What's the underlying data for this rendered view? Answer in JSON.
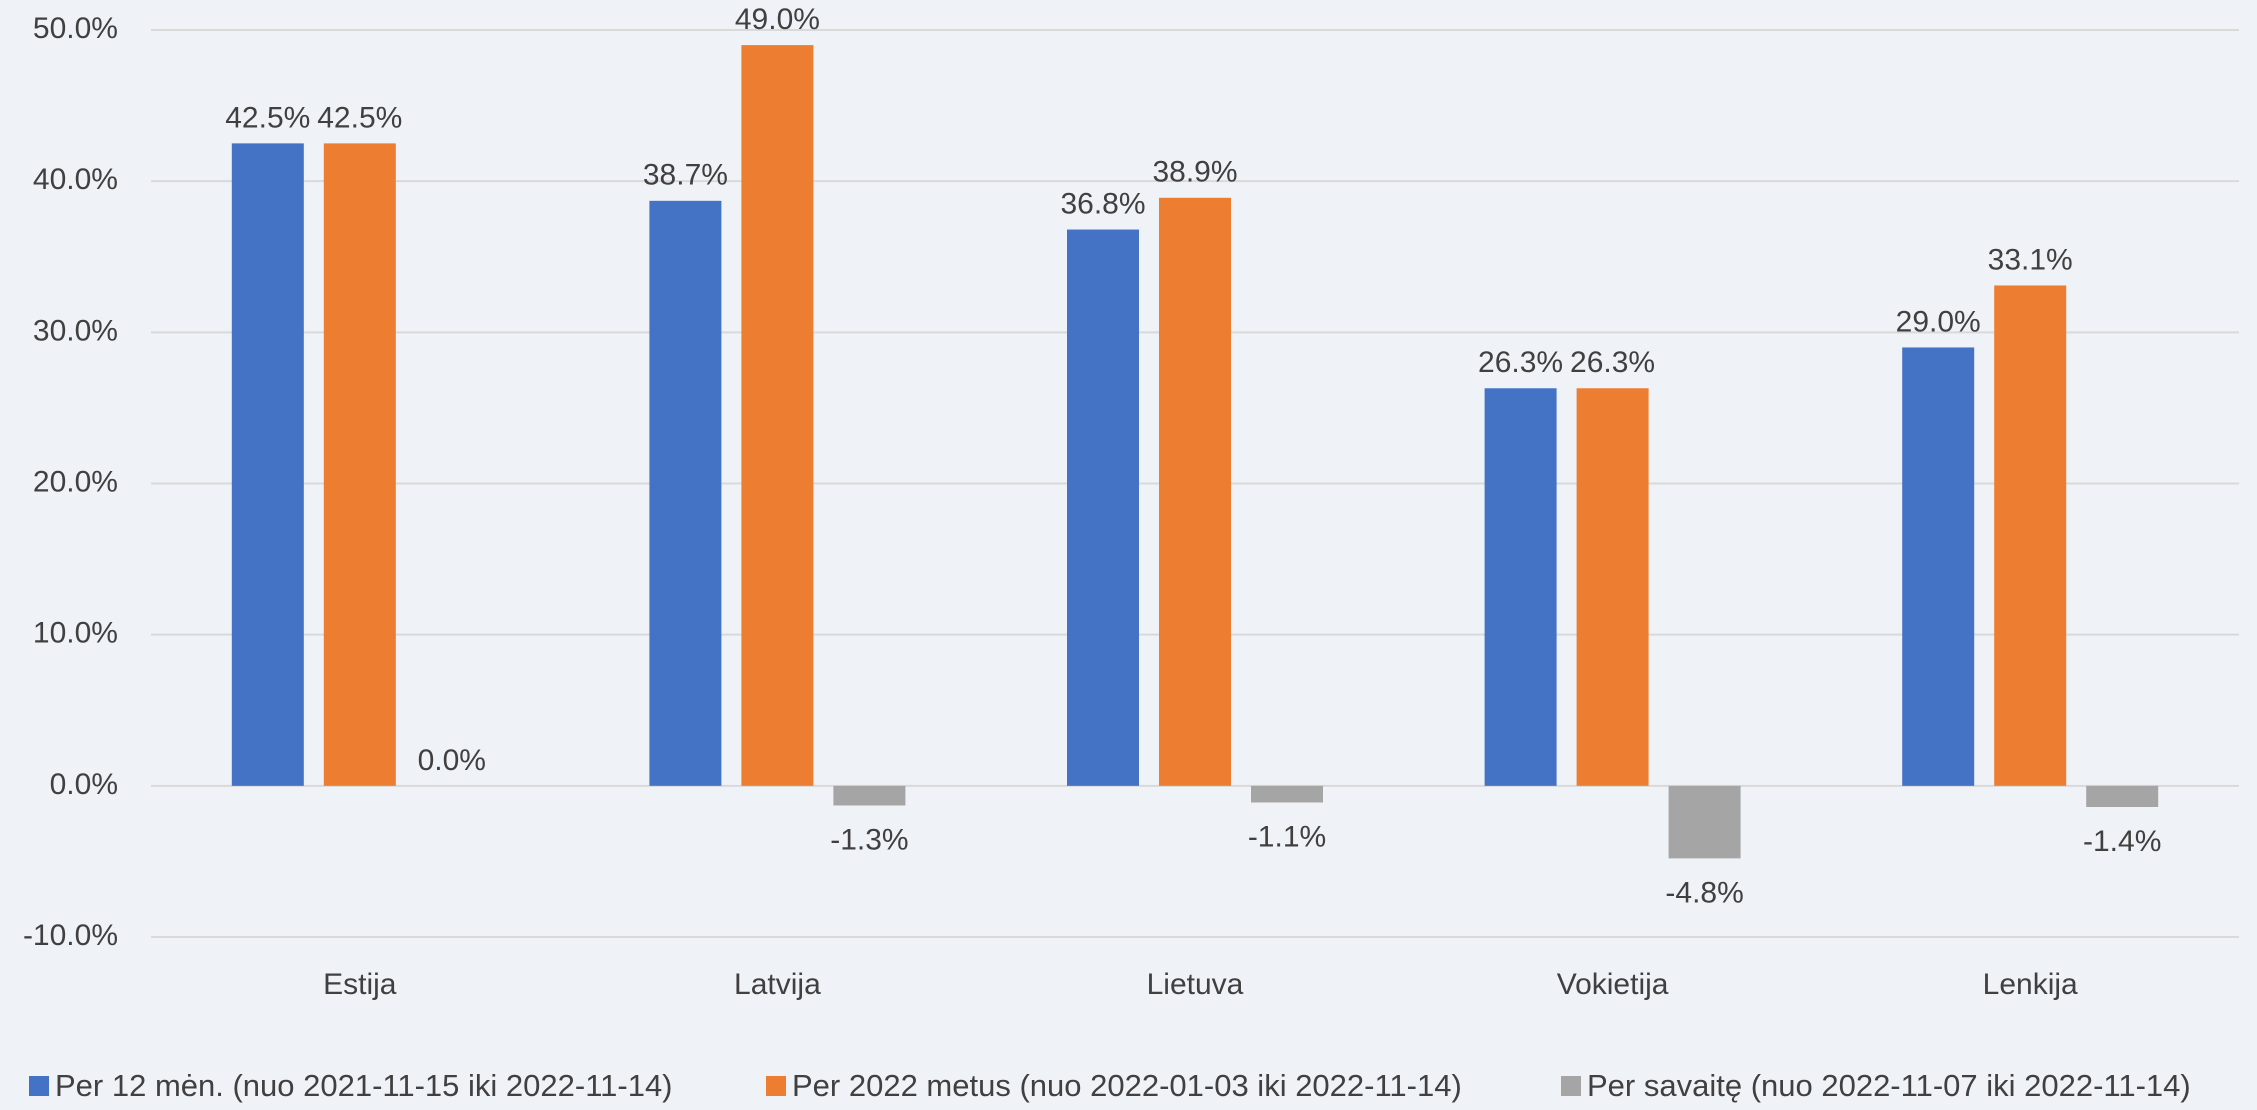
{
  "chart_data": {
    "type": "bar",
    "categories": [
      "Estija",
      "Latvija",
      "Lietuva",
      "Vokietija",
      "Lenkija"
    ],
    "series": [
      {
        "name": "Per 12 mėn. (nuo 2021-11-15 iki 2022-11-14)",
        "color": "#4472c4",
        "values": [
          42.5,
          38.7,
          36.8,
          26.3,
          29.0
        ],
        "value_labels": [
          "42.5%",
          "38.7%",
          "36.8%",
          "26.3%",
          "29.0%"
        ]
      },
      {
        "name": "Per 2022 metus (nuo 2022-01-03 iki 2022-11-14)",
        "color": "#ed7d31",
        "values": [
          42.5,
          49.0,
          38.9,
          26.3,
          33.1
        ],
        "value_labels": [
          "42.5%",
          "49.0%",
          "38.9%",
          "26.3%",
          "33.1%"
        ]
      },
      {
        "name": "Per savaitę (nuo 2022-11-07 iki 2022-11-14)",
        "color": "#a5a5a5",
        "values": [
          0.0,
          -1.3,
          -1.1,
          -4.8,
          -1.4
        ],
        "value_labels": [
          "0.0%",
          "-1.3%",
          "-1.1%",
          "-4.8%",
          "-1.4%"
        ]
      }
    ],
    "ylim": [
      -10,
      50
    ],
    "yticks": [
      {
        "value": -10,
        "label": "-10.0%"
      },
      {
        "value": 0,
        "label": "0.0%"
      },
      {
        "value": 10,
        "label": "10.0%"
      },
      {
        "value": 20,
        "label": "20.0%"
      },
      {
        "value": 30,
        "label": "30.0%"
      },
      {
        "value": 40,
        "label": "40.0%"
      },
      {
        "value": 50,
        "label": "50.0%"
      }
    ],
    "grid": true,
    "legend": "bottom"
  }
}
